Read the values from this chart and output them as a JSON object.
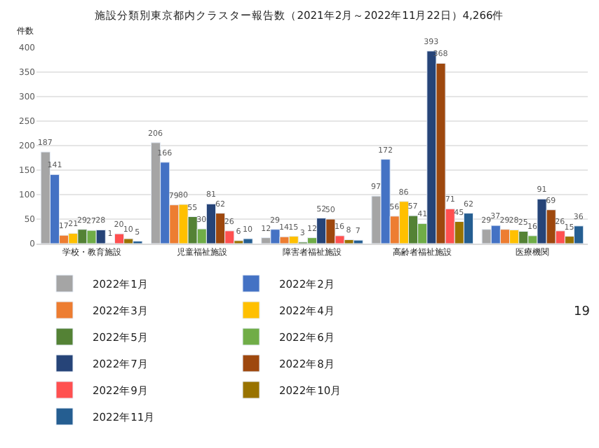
{
  "chart_data": {
    "type": "bar",
    "title": "施設分類別東京都内クラスター報告数（2021年2月～2022年11月22日）4,266件",
    "ylabel": "件数",
    "categories": [
      "学校・教育施設",
      "児童福祉施設",
      "障害者福祉施設",
      "高齢者福祉施設",
      "医療機関"
    ],
    "series": [
      {
        "name": "2022年1月",
        "color": "#a5a5a5",
        "values": [
          187,
          206,
          12,
          97,
          29
        ]
      },
      {
        "name": "2022年2月",
        "color": "#4472c4",
        "values": [
          141,
          166,
          29,
          172,
          37
        ]
      },
      {
        "name": "2022年3月",
        "color": "#ed7d31",
        "values": [
          17,
          79,
          14,
          56,
          29
        ]
      },
      {
        "name": "2022年4月",
        "color": "#ffc000",
        "values": [
          21,
          80,
          15,
          86,
          28
        ]
      },
      {
        "name": "2022年5月",
        "color": "#548235",
        "values": [
          29,
          55,
          3,
          57,
          25
        ]
      },
      {
        "name": "2022年6月",
        "color": "#70ad47",
        "values": [
          27,
          30,
          12,
          41,
          16
        ]
      },
      {
        "name": "2022年7月",
        "color": "#264478",
        "values": [
          28,
          81,
          52,
          393,
          91
        ]
      },
      {
        "name": "2022年8月",
        "color": "#9e480e",
        "values": [
          1,
          62,
          50,
          368,
          69
        ]
      },
      {
        "name": "2022年9月",
        "color": "#ff5050",
        "values": [
          20,
          26,
          16,
          71,
          26
        ]
      },
      {
        "name": "2022年10月",
        "color": "#997300",
        "values": [
          10,
          6,
          8,
          45,
          15
        ]
      },
      {
        "name": "2022年11月",
        "color": "#255e91",
        "values": [
          5,
          10,
          7,
          62,
          36
        ]
      }
    ],
    "ylim": [
      0,
      400
    ],
    "yticks": [
      0,
      50,
      100,
      150,
      200,
      250,
      300,
      350,
      400
    ],
    "grid": "y",
    "legend": "bottom",
    "data_labels": true,
    "annotations": [
      "19"
    ]
  }
}
